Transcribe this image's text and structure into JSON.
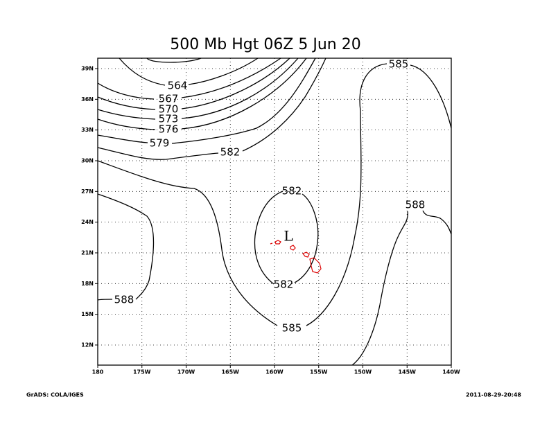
{
  "title": "500 Mb Hgt 06Z 5 Jun 20",
  "x_labels": [
    "180",
    "175W",
    "170W",
    "165W",
    "160W",
    "155W",
    "150W",
    "145W",
    "140W"
  ],
  "y_labels": [
    "39N",
    "36N",
    "33N",
    "30N",
    "27N",
    "24N",
    "21N",
    "18N",
    "15N",
    "12N"
  ],
  "contour_labels": [
    564,
    567,
    570,
    573,
    576,
    579,
    582,
    582,
    582,
    585,
    585,
    588,
    588
  ],
  "low_marker": "L",
  "footer": {
    "left": "GrADS: COLA/IGES",
    "right": "2011-08-29-20:48"
  }
}
